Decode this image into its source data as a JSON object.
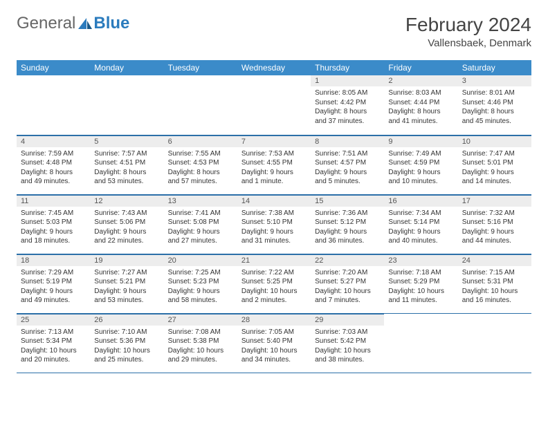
{
  "logo": {
    "part1": "General",
    "part2": "Blue"
  },
  "title": "February 2024",
  "location": "Vallensbaek, Denmark",
  "colors": {
    "header_bg": "#3b8bc9",
    "header_text": "#ffffff",
    "row_divider": "#2b6fa8",
    "daynum_bg": "#ededed",
    "body_text": "#333333",
    "logo_blue": "#2b7bbd"
  },
  "typography": {
    "title_fontsize": 28,
    "location_fontsize": 15,
    "dayheader_fontsize": 12,
    "daynum_fontsize": 11,
    "body_fontsize": 10
  },
  "day_headers": [
    "Sunday",
    "Monday",
    "Tuesday",
    "Wednesday",
    "Thursday",
    "Friday",
    "Saturday"
  ],
  "weeks": [
    [
      {
        "day": "",
        "sunrise": "",
        "sunset": "",
        "daylight": ""
      },
      {
        "day": "",
        "sunrise": "",
        "sunset": "",
        "daylight": ""
      },
      {
        "day": "",
        "sunrise": "",
        "sunset": "",
        "daylight": ""
      },
      {
        "day": "",
        "sunrise": "",
        "sunset": "",
        "daylight": ""
      },
      {
        "day": "1",
        "sunrise": "Sunrise: 8:05 AM",
        "sunset": "Sunset: 4:42 PM",
        "daylight": "Daylight: 8 hours and 37 minutes."
      },
      {
        "day": "2",
        "sunrise": "Sunrise: 8:03 AM",
        "sunset": "Sunset: 4:44 PM",
        "daylight": "Daylight: 8 hours and 41 minutes."
      },
      {
        "day": "3",
        "sunrise": "Sunrise: 8:01 AM",
        "sunset": "Sunset: 4:46 PM",
        "daylight": "Daylight: 8 hours and 45 minutes."
      }
    ],
    [
      {
        "day": "4",
        "sunrise": "Sunrise: 7:59 AM",
        "sunset": "Sunset: 4:48 PM",
        "daylight": "Daylight: 8 hours and 49 minutes."
      },
      {
        "day": "5",
        "sunrise": "Sunrise: 7:57 AM",
        "sunset": "Sunset: 4:51 PM",
        "daylight": "Daylight: 8 hours and 53 minutes."
      },
      {
        "day": "6",
        "sunrise": "Sunrise: 7:55 AM",
        "sunset": "Sunset: 4:53 PM",
        "daylight": "Daylight: 8 hours and 57 minutes."
      },
      {
        "day": "7",
        "sunrise": "Sunrise: 7:53 AM",
        "sunset": "Sunset: 4:55 PM",
        "daylight": "Daylight: 9 hours and 1 minute."
      },
      {
        "day": "8",
        "sunrise": "Sunrise: 7:51 AM",
        "sunset": "Sunset: 4:57 PM",
        "daylight": "Daylight: 9 hours and 5 minutes."
      },
      {
        "day": "9",
        "sunrise": "Sunrise: 7:49 AM",
        "sunset": "Sunset: 4:59 PM",
        "daylight": "Daylight: 9 hours and 10 minutes."
      },
      {
        "day": "10",
        "sunrise": "Sunrise: 7:47 AM",
        "sunset": "Sunset: 5:01 PM",
        "daylight": "Daylight: 9 hours and 14 minutes."
      }
    ],
    [
      {
        "day": "11",
        "sunrise": "Sunrise: 7:45 AM",
        "sunset": "Sunset: 5:03 PM",
        "daylight": "Daylight: 9 hours and 18 minutes."
      },
      {
        "day": "12",
        "sunrise": "Sunrise: 7:43 AM",
        "sunset": "Sunset: 5:06 PM",
        "daylight": "Daylight: 9 hours and 22 minutes."
      },
      {
        "day": "13",
        "sunrise": "Sunrise: 7:41 AM",
        "sunset": "Sunset: 5:08 PM",
        "daylight": "Daylight: 9 hours and 27 minutes."
      },
      {
        "day": "14",
        "sunrise": "Sunrise: 7:38 AM",
        "sunset": "Sunset: 5:10 PM",
        "daylight": "Daylight: 9 hours and 31 minutes."
      },
      {
        "day": "15",
        "sunrise": "Sunrise: 7:36 AM",
        "sunset": "Sunset: 5:12 PM",
        "daylight": "Daylight: 9 hours and 36 minutes."
      },
      {
        "day": "16",
        "sunrise": "Sunrise: 7:34 AM",
        "sunset": "Sunset: 5:14 PM",
        "daylight": "Daylight: 9 hours and 40 minutes."
      },
      {
        "day": "17",
        "sunrise": "Sunrise: 7:32 AM",
        "sunset": "Sunset: 5:16 PM",
        "daylight": "Daylight: 9 hours and 44 minutes."
      }
    ],
    [
      {
        "day": "18",
        "sunrise": "Sunrise: 7:29 AM",
        "sunset": "Sunset: 5:19 PM",
        "daylight": "Daylight: 9 hours and 49 minutes."
      },
      {
        "day": "19",
        "sunrise": "Sunrise: 7:27 AM",
        "sunset": "Sunset: 5:21 PM",
        "daylight": "Daylight: 9 hours and 53 minutes."
      },
      {
        "day": "20",
        "sunrise": "Sunrise: 7:25 AM",
        "sunset": "Sunset: 5:23 PM",
        "daylight": "Daylight: 9 hours and 58 minutes."
      },
      {
        "day": "21",
        "sunrise": "Sunrise: 7:22 AM",
        "sunset": "Sunset: 5:25 PM",
        "daylight": "Daylight: 10 hours and 2 minutes."
      },
      {
        "day": "22",
        "sunrise": "Sunrise: 7:20 AM",
        "sunset": "Sunset: 5:27 PM",
        "daylight": "Daylight: 10 hours and 7 minutes."
      },
      {
        "day": "23",
        "sunrise": "Sunrise: 7:18 AM",
        "sunset": "Sunset: 5:29 PM",
        "daylight": "Daylight: 10 hours and 11 minutes."
      },
      {
        "day": "24",
        "sunrise": "Sunrise: 7:15 AM",
        "sunset": "Sunset: 5:31 PM",
        "daylight": "Daylight: 10 hours and 16 minutes."
      }
    ],
    [
      {
        "day": "25",
        "sunrise": "Sunrise: 7:13 AM",
        "sunset": "Sunset: 5:34 PM",
        "daylight": "Daylight: 10 hours and 20 minutes."
      },
      {
        "day": "26",
        "sunrise": "Sunrise: 7:10 AM",
        "sunset": "Sunset: 5:36 PM",
        "daylight": "Daylight: 10 hours and 25 minutes."
      },
      {
        "day": "27",
        "sunrise": "Sunrise: 7:08 AM",
        "sunset": "Sunset: 5:38 PM",
        "daylight": "Daylight: 10 hours and 29 minutes."
      },
      {
        "day": "28",
        "sunrise": "Sunrise: 7:05 AM",
        "sunset": "Sunset: 5:40 PM",
        "daylight": "Daylight: 10 hours and 34 minutes."
      },
      {
        "day": "29",
        "sunrise": "Sunrise: 7:03 AM",
        "sunset": "Sunset: 5:42 PM",
        "daylight": "Daylight: 10 hours and 38 minutes."
      },
      {
        "day": "",
        "sunrise": "",
        "sunset": "",
        "daylight": ""
      },
      {
        "day": "",
        "sunrise": "",
        "sunset": "",
        "daylight": ""
      }
    ]
  ]
}
